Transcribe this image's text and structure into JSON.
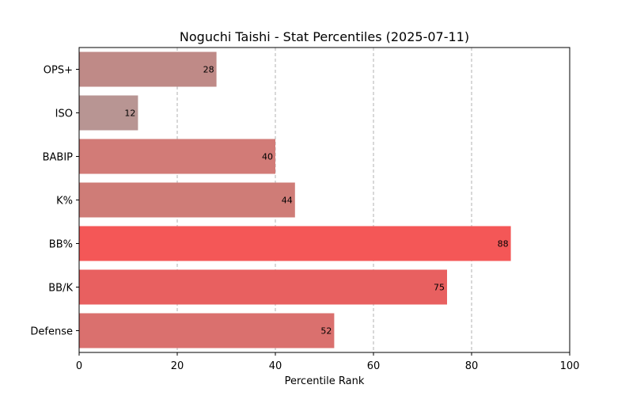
{
  "chart_data": {
    "type": "bar",
    "orientation": "horizontal",
    "title": "Noguchi Taishi - Stat Percentiles (2025-07-11)",
    "xlabel": "Percentile Rank",
    "ylabel": "",
    "xlim": [
      0,
      100
    ],
    "x_ticks": [
      "0",
      "20",
      "40",
      "60",
      "80",
      "100"
    ],
    "grid": "vertical dashed",
    "categories": [
      "OPS+",
      "ISO",
      "BABIP",
      "K%",
      "BB%",
      "BB/K",
      "Defense"
    ],
    "values": [
      28,
      12,
      40,
      44,
      88,
      75,
      52
    ],
    "colors": [
      "#BF8A87",
      "#B89593",
      "#D27B77",
      "#CF7C77",
      "#F45757",
      "#E86060",
      "#DA706E"
    ]
  }
}
